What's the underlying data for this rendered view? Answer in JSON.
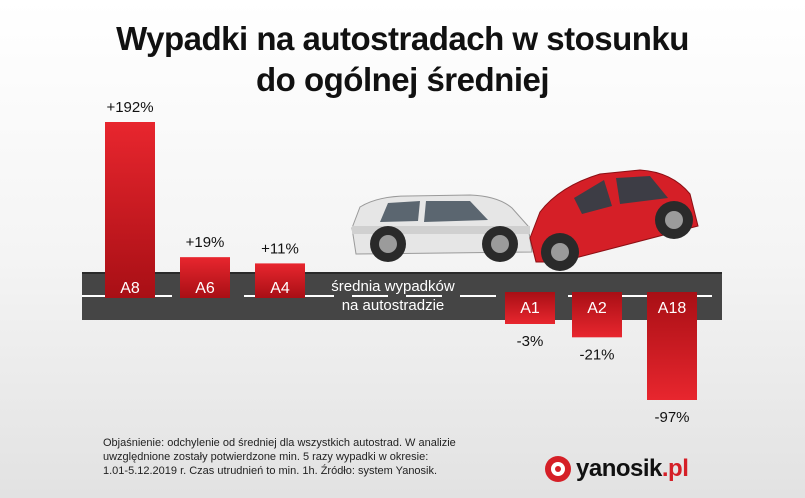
{
  "title_line1": "Wypadki na autostradach w stosunku",
  "title_line2": "do ogólnej średniej",
  "road_label_line1": "średnia wypadków",
  "road_label_line2": "na autostradzie",
  "note_line1": "Objaśnienie: odchylenie od średniej dla wszystkich autostrad. W analizie",
  "note_line2": "uwzględnione zostały potwierdzone min. 5 razy wypadki w okresie:",
  "note_line3": "1.01-5.12.2019 r. Czas utrudnień to min. 1h. Źródło: system Yanosik.",
  "logo": {
    "name": "yanosik",
    "tld": ".pl"
  },
  "colors": {
    "bar": "#d51f27",
    "road": "#444444",
    "road_stripe": "#ffffff",
    "brand": "#d51f27"
  },
  "chart_data": {
    "type": "bar",
    "title": "Wypadki na autostradach w stosunku do ogólnej średniej",
    "unit": "%",
    "categories": [
      "A8",
      "A6",
      "A4",
      "A1",
      "A2",
      "A18"
    ],
    "values": [
      192,
      19,
      11,
      -3,
      -21,
      -97
    ],
    "value_labels": [
      "+192%",
      "+19%",
      "+11%",
      "-3%",
      "-21%",
      "-97%"
    ],
    "baseline": 0
  }
}
